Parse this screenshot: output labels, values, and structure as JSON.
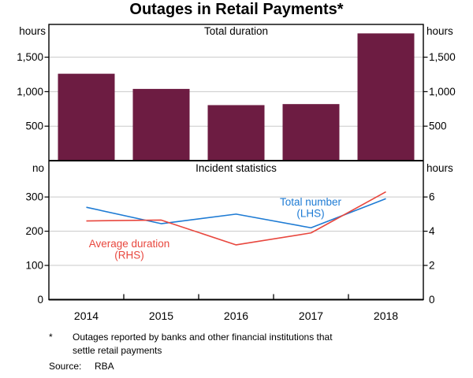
{
  "title": "Outages in Retail Payments*",
  "footnote": {
    "marker": "*",
    "text_line1": "Outages reported by banks and other financial institutions that",
    "text_line2": "settle retail payments"
  },
  "source": {
    "label": "Source:",
    "value": "RBA"
  },
  "colors": {
    "bar": "#6d1c42",
    "line_blue": "#1e7bd4",
    "line_red": "#e8473e",
    "grid": "#c9c9c9",
    "frame": "#000000"
  },
  "chart_data": {
    "type": "combo",
    "categories": [
      "2014",
      "2015",
      "2016",
      "2017",
      "2018"
    ],
    "grid": true,
    "legend": "inline-labels",
    "panels": [
      {
        "title": "Total duration",
        "type": "bar",
        "unit_left": "hours",
        "unit_right": "hours",
        "ylim": [
          0,
          1975
        ],
        "ytick_values": [
          500,
          1000,
          1500
        ],
        "ytick_labels": [
          "500",
          "1,000",
          "1,500"
        ],
        "series": [
          {
            "name": "Total duration",
            "values": [
              1260,
              1040,
              805,
              820,
              1845
            ],
            "unit": "hours",
            "color": "#6d1c42"
          }
        ]
      },
      {
        "title": "Incident statistics",
        "type": "line",
        "unit_left": "no",
        "unit_right": "hours",
        "ylim_left": [
          0,
          405
        ],
        "ylim_right": [
          0,
          8.1
        ],
        "ytick_values_left": [
          0,
          100,
          200,
          300
        ],
        "ytick_labels_left": [
          "0",
          "100",
          "200",
          "300"
        ],
        "ytick_values_right": [
          0,
          2,
          4,
          6
        ],
        "ytick_labels_right": [
          "0",
          "2",
          "4",
          "6"
        ],
        "series": [
          {
            "name": "Total number",
            "axis": "left",
            "unit": "no",
            "color": "#1e7bd4",
            "values": [
              270,
              222,
              250,
              210,
              295
            ],
            "label_line1": "Total number",
            "label_line2": "(LHS)"
          },
          {
            "name": "Average duration",
            "axis": "right",
            "unit": "hours",
            "color": "#e8473e",
            "values": [
              4.6,
              4.65,
              3.2,
              3.9,
              6.3
            ],
            "label_line1": "Average duration",
            "label_line2": "(RHS)"
          }
        ]
      }
    ]
  }
}
